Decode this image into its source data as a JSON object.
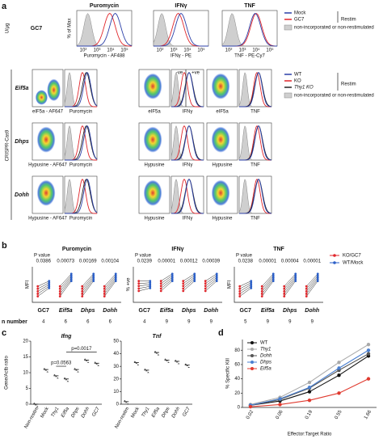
{
  "panel_labels": [
    "a",
    "b",
    "c",
    "d"
  ],
  "a": {
    "columns": [
      "Puromycin",
      "IFNγ",
      "TNF"
    ],
    "gc7_row": {
      "label": "GC7",
      "side": "U/μg",
      "y_label": "% of Max",
      "x_labels": [
        "Puromycin - AF488",
        "IFNγ - PE",
        "TNF - PE-Cy7"
      ],
      "x_ticks": [
        "10²",
        "10³",
        "10⁴",
        "10⁵"
      ]
    },
    "legend1": {
      "header": "Restim",
      "items": [
        "Mock",
        "GC7"
      ],
      "colors": [
        "#2b3fa8",
        "#e0262b"
      ],
      "other": "non-incorporated or non-restimulated"
    },
    "crispr": {
      "side": "CRISPR-Cas9",
      "rows": [
        {
          "label": "Eif5a",
          "x_labels": [
            "eIF5a - AF647",
            "Puromycin",
            "eIF5a",
            "IFNγ",
            "eIF5a",
            "TNF"
          ]
        },
        {
          "label": "Dhps",
          "x_labels": [
            "Hypusine - AF647",
            "Puromycin",
            "Hypusine",
            "IFNγ",
            "Hypusine",
            "TNF"
          ]
        },
        {
          "label": "Dohh",
          "x_labels": [
            "Hypusine - AF647",
            "Puromycin",
            "Hypusine",
            "IFNγ",
            "Hypusine",
            "TNF"
          ]
        }
      ]
    },
    "legend2": {
      "header": "Restim",
      "items": [
        "WT",
        "KO",
        "Thy1 KO"
      ],
      "colors": [
        "#2b3fa8",
        "#e0262b",
        "#222222"
      ],
      "other": "non-incorporated or non-restimulated"
    },
    "gates": [
      "-ve",
      "+ve"
    ]
  },
  "b": {
    "p_label": "P value",
    "n_label": "n number",
    "categories": [
      "GC7",
      "Eif5a",
      "Dhps",
      "Dohh"
    ],
    "panels": [
      {
        "title": "Puromycin",
        "y_label": "MFI",
        "p_values": [
          "0.0386",
          "0.00073",
          "0.00169",
          "0.00104"
        ],
        "n": [
          4,
          6,
          6,
          6
        ]
      },
      {
        "title": "IFNγ",
        "y_label": "% +ve",
        "p_values": [
          "0.0239",
          "0.00001",
          "0.00012",
          "0.00039"
        ],
        "n": [
          4,
          9,
          9,
          9
        ]
      },
      {
        "title": "TNF",
        "y_label": "MFI",
        "p_values": [
          "0.0238",
          "0.00001",
          "0.00004",
          "0.00001"
        ],
        "n": [
          5,
          9,
          9,
          9
        ]
      }
    ],
    "legend": [
      {
        "name": "KO/GC7",
        "color": "#e0262b"
      },
      {
        "name": "WT/Mock",
        "color": "#2b5fc8"
      }
    ]
  },
  "c": {
    "y_label": "Gene/Actb ratio",
    "categories": [
      "Non-restim",
      "Mock",
      "Thy1",
      "Eif5a",
      "Dhps",
      "Dohh",
      "GC7"
    ],
    "panels": [
      {
        "title": "Ifng",
        "ylim": [
          0,
          20
        ],
        "yticks": [
          0,
          5,
          10,
          15,
          20
        ],
        "values": [
          0,
          11,
          9,
          8,
          11,
          14,
          13
        ],
        "annotations": [
          "p=0.0563",
          "p=0.0017"
        ]
      },
      {
        "title": "Tnf",
        "ylim": [
          0,
          50
        ],
        "yticks": [
          0,
          10,
          20,
          30,
          40,
          50
        ],
        "values": [
          2,
          33,
          27,
          41,
          35,
          34,
          31
        ]
      }
    ]
  },
  "d": {
    "type": "line",
    "x_label": "Effector:Target Ratio",
    "y_label": "% Specific Kill",
    "categories": [
      "0.02",
      "0.06",
      "0.19",
      "0.55",
      "1.66"
    ],
    "ylim": [
      0,
      95
    ],
    "yticks": [
      0,
      20,
      40,
      60,
      80
    ],
    "series": [
      {
        "name": "WT",
        "color": "#111111",
        "values": [
          3,
          9,
          22,
          45,
          72
        ]
      },
      {
        "name": "Thy1",
        "color": "#aaaaaa",
        "values": [
          4,
          14,
          35,
          63,
          88
        ]
      },
      {
        "name": "Dohh",
        "color": "#555555",
        "values": [
          3,
          11,
          27,
          52,
          75
        ]
      },
      {
        "name": "Dhps",
        "color": "#4a7fd0",
        "values": [
          3,
          12,
          28,
          55,
          80
        ]
      },
      {
        "name": "Eif5a",
        "color": "#e03a2f",
        "values": [
          1,
          4,
          10,
          20,
          40
        ]
      }
    ]
  }
}
